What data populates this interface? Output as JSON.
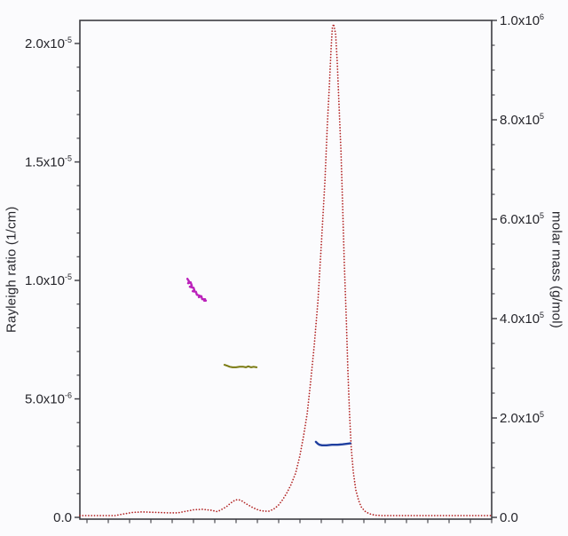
{
  "chart_data": {
    "type": "line",
    "title": "",
    "description": "SEC-MALS style chromatogram: dotted Rayleigh ratio trace with three molar-mass segments across the peaks",
    "legend": "none",
    "grid": false,
    "colors": {
      "frame": "#3c3c42",
      "tick_label": "#26262c",
      "background": "#fbfbfd",
      "rayleigh_trace": "#b22424",
      "molar_mass_peak_a": "#bb22bb",
      "molar_mass_peak_b": "#7a7a10",
      "molar_mass_peak_c": "#1f3f9f"
    },
    "axes": {
      "left": {
        "title": "Rayleigh ratio (1/cm)",
        "range": [
          0,
          2.097e-05
        ],
        "major_step": 5e-06,
        "minor_step": 1e-06,
        "ticks": [
          {
            "base": "2.0x10",
            "exp": "-5",
            "value": 2e-05
          },
          {
            "base": "1.5x10",
            "exp": "-5",
            "value": 1.5e-05
          },
          {
            "base": "1.0x10",
            "exp": "-5",
            "value": 1e-05
          },
          {
            "base": "5.0x10",
            "exp": "-6",
            "value": 5e-06
          },
          {
            "base": "0.0",
            "exp": "",
            "value": 0
          }
        ]
      },
      "right": {
        "title": "molar mass (g/mol)",
        "range": [
          0,
          1000000.0
        ],
        "major_step": 200000.0,
        "minor_step": 50000.0,
        "ticks": [
          {
            "base": "1.0x10",
            "exp": "6",
            "value": 1000000.0
          },
          {
            "base": "8.0x10",
            "exp": "5",
            "value": 800000.0
          },
          {
            "base": "6.0x10",
            "exp": "5",
            "value": 600000.0
          },
          {
            "base": "4.0x10",
            "exp": "5",
            "value": 400000.0
          },
          {
            "base": "2.0x10",
            "exp": "5",
            "value": 200000.0
          },
          {
            "base": "0.0",
            "exp": "",
            "value": 0
          }
        ]
      },
      "bottom": {
        "title": "",
        "tick_labels": [],
        "tick_count": 20
      }
    },
    "series": [
      {
        "name": "rayleigh-ratio-trace",
        "axis": "left",
        "style": "dotted",
        "color": "#b22424",
        "width": 1.8,
        "points": [
          [
            0.0,
            7.5e-08
          ],
          [
            0.043,
            7.5e-08
          ],
          [
            0.086,
            7.5e-08
          ],
          [
            0.108,
            1.5e-07
          ],
          [
            0.129,
            2.1e-07
          ],
          [
            0.151,
            2.3e-07
          ],
          [
            0.183,
            2.1e-07
          ],
          [
            0.216,
            1.9e-07
          ],
          [
            0.237,
            1.9e-07
          ],
          [
            0.259,
            2.6e-07
          ],
          [
            0.276,
            3.2e-07
          ],
          [
            0.297,
            3.4e-07
          ],
          [
            0.319,
            3e-07
          ],
          [
            0.334,
            2.4e-07
          ],
          [
            0.345,
            3.4e-07
          ],
          [
            0.356,
            4.5e-07
          ],
          [
            0.366,
            6e-07
          ],
          [
            0.377,
            7.3e-07
          ],
          [
            0.384,
            7.5e-07
          ],
          [
            0.392,
            7.1e-07
          ],
          [
            0.405,
            5.6e-07
          ],
          [
            0.42,
            4.1e-07
          ],
          [
            0.435,
            3e-07
          ],
          [
            0.448,
            2.6e-07
          ],
          [
            0.459,
            2.6e-07
          ],
          [
            0.47,
            3.4e-07
          ],
          [
            0.481,
            4.9e-07
          ],
          [
            0.491,
            7.1e-07
          ],
          [
            0.502,
            1.01e-06
          ],
          [
            0.513,
            1.39e-06
          ],
          [
            0.524,
            1.87e-06
          ],
          [
            0.534,
            2.58e-06
          ],
          [
            0.543,
            3.41e-06
          ],
          [
            0.552,
            4.38e-06
          ],
          [
            0.56,
            5.66e-06
          ],
          [
            0.569,
            7.23e-06
          ],
          [
            0.578,
            9.1e-06
          ],
          [
            0.586,
            1.142e-05
          ],
          [
            0.595,
            1.416e-05
          ],
          [
            0.601,
            1.659e-05
          ],
          [
            0.606,
            1.828e-05
          ],
          [
            0.61,
            1.977e-05
          ],
          [
            0.613,
            2.064e-05
          ],
          [
            0.616,
            2.082e-05
          ],
          [
            0.621,
            2.041e-05
          ],
          [
            0.625,
            1.921e-05
          ],
          [
            0.629,
            1.753e-05
          ],
          [
            0.634,
            1.547e-05
          ],
          [
            0.638,
            1.322e-05
          ],
          [
            0.642,
            1.078e-05
          ],
          [
            0.647,
            8.35e-06
          ],
          [
            0.651,
            6.1e-06
          ],
          [
            0.655,
            4.31e-06
          ],
          [
            0.659,
            2.92e-06
          ],
          [
            0.664,
            1.91e-06
          ],
          [
            0.67,
            1.16e-06
          ],
          [
            0.677,
            7.1e-07
          ],
          [
            0.683,
            4.5e-07
          ],
          [
            0.692,
            2.6e-07
          ],
          [
            0.703,
            1.5e-07
          ],
          [
            0.716,
            9.4e-08
          ],
          [
            0.733,
            7.5e-08
          ],
          [
            0.776,
            7.5e-08
          ],
          [
            0.841,
            7.5e-08
          ],
          [
            0.905,
            7.5e-08
          ],
          [
            0.97,
            7.5e-08
          ],
          [
            1.0,
            7.5e-08
          ]
        ]
      },
      {
        "name": "molar-mass-segment-magenta",
        "axis": "right",
        "style": "solid",
        "color": "#bb22bb",
        "width": 2.4,
        "points": [
          [
            0.261,
            480000.0
          ],
          [
            0.265,
            475000.0
          ],
          [
            0.263,
            471000.0
          ],
          [
            0.269,
            473000.0
          ],
          [
            0.272,
            466000.0
          ],
          [
            0.267,
            464000.0
          ],
          [
            0.276,
            462000.0
          ],
          [
            0.278,
            457000.0
          ],
          [
            0.274,
            455000.0
          ],
          [
            0.282,
            454000.0
          ],
          [
            0.284,
            448000.0
          ],
          [
            0.291,
            446000.0
          ],
          [
            0.289,
            443000.0
          ],
          [
            0.295,
            445000.0
          ],
          [
            0.297,
            439000.0
          ],
          [
            0.304,
            439000.0
          ],
          [
            0.302,
            436000.0
          ],
          [
            0.306,
            436000.0
          ]
        ]
      },
      {
        "name": "molar-mass-segment-olive",
        "axis": "right",
        "style": "solid",
        "color": "#7a7a10",
        "width": 2.0,
        "points": [
          [
            0.351,
            307000.0
          ],
          [
            0.358,
            305000.0
          ],
          [
            0.364,
            303000.0
          ],
          [
            0.371,
            302000.0
          ],
          [
            0.379,
            302000.0
          ],
          [
            0.388,
            303000.0
          ],
          [
            0.397,
            303000.0
          ],
          [
            0.403,
            302000.0
          ],
          [
            0.409,
            304000.0
          ],
          [
            0.416,
            302000.0
          ],
          [
            0.422,
            303000.0
          ],
          [
            0.429,
            302000.0
          ]
        ]
      },
      {
        "name": "molar-mass-segment-blue",
        "axis": "right",
        "style": "solid",
        "color": "#1f3f9f",
        "width": 2.4,
        "points": [
          [
            0.573,
            152000.0
          ],
          [
            0.578,
            148000.0
          ],
          [
            0.582,
            146000.0
          ],
          [
            0.588,
            145000.0
          ],
          [
            0.599,
            145000.0
          ],
          [
            0.612,
            146000.0
          ],
          [
            0.625,
            146000.0
          ],
          [
            0.638,
            147000.0
          ],
          [
            0.649,
            148000.0
          ],
          [
            0.657,
            149000.0
          ]
        ]
      }
    ]
  }
}
